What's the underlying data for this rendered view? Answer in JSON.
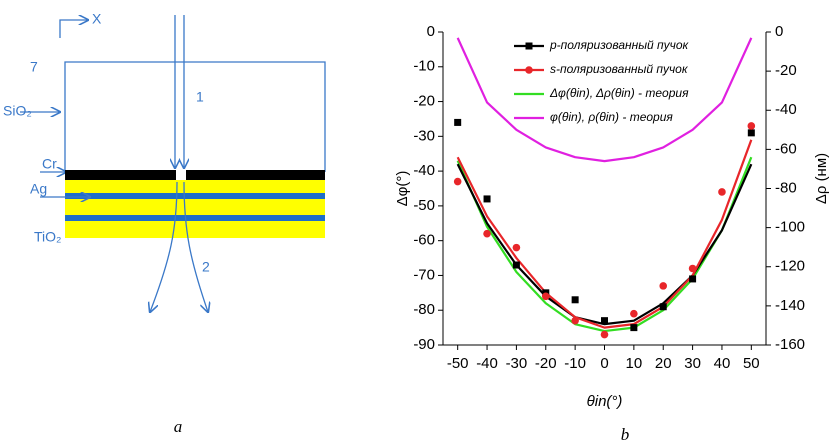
{
  "diagram": {
    "axes": [
      "X",
      "7"
    ],
    "layers": [
      "SiO₂",
      "Cr",
      "Ag",
      "TiO₂"
    ],
    "beams": [
      "1",
      "2"
    ]
  },
  "captions": [
    "a",
    "b"
  ],
  "chart_data": {
    "type": "line",
    "xlabel": "θin(°)",
    "ylabel": "Δφ(°)",
    "y2label": "Δρ (нм)",
    "xlim": [
      -55,
      55
    ],
    "xticks": [
      -50,
      -40,
      -30,
      -20,
      -10,
      0,
      10,
      20,
      30,
      40,
      50
    ],
    "ylim": [
      -90,
      0
    ],
    "yticks": [
      0,
      -10,
      -20,
      -30,
      -40,
      -50,
      -60,
      -70,
      -80,
      -90
    ],
    "y2lim": [
      -160,
      0
    ],
    "y2ticks": [
      0,
      -20,
      -40,
      -60,
      -80,
      -100,
      -120,
      -140,
      -160
    ],
    "series": [
      {
        "name": "p-поляризованный пучок",
        "color": "#000000",
        "marker": "square",
        "x": [
          -50,
          -40,
          -30,
          -20,
          -10,
          0,
          10,
          20,
          30,
          50
        ],
        "values": [
          -26,
          -48,
          -67,
          -75,
          -77,
          -83,
          -85,
          -79,
          -71,
          -29
        ]
      },
      {
        "name": "s-поляризованный пучок",
        "color": "#e8262a",
        "marker": "circle",
        "x": [
          -50,
          -40,
          -30,
          -20,
          -10,
          0,
          10,
          20,
          30,
          40,
          50
        ],
        "values": [
          -43,
          -58,
          -62,
          -76,
          -83,
          -87,
          -81,
          -73,
          -68,
          -46,
          -27
        ]
      },
      {
        "name": "Δφ(θin), Δρ(θin) - теория",
        "color": "#33dd22",
        "x": [
          -50,
          -40,
          -30,
          -20,
          -10,
          0,
          10,
          20,
          30,
          40,
          50
        ],
        "values": [
          -37,
          -56,
          -69,
          -78,
          -84,
          -86,
          -85,
          -80,
          -71,
          -57,
          -36
        ]
      },
      {
        "name": "φ(θin), ρ(θin) - теория",
        "color": "#e020e0",
        "axis": "y2",
        "x": [
          -50,
          -40,
          -30,
          -20,
          -10,
          0,
          10,
          20,
          30,
          40,
          50
        ],
        "values": [
          -3,
          -36,
          -50,
          -59,
          -64,
          -66,
          -64,
          -59,
          -50,
          -36,
          -3
        ]
      },
      {
        "color": "#000000",
        "x": [
          -50,
          -40,
          -30,
          -20,
          -10,
          0,
          10,
          20,
          30,
          40,
          50
        ],
        "values": [
          -38,
          -55,
          -67,
          -76,
          -82,
          -84,
          -83,
          -78,
          -70,
          -57,
          -38
        ]
      },
      {
        "color": "#e8262a",
        "x": [
          -50,
          -40,
          -30,
          -20,
          -10,
          0,
          10,
          20,
          30,
          40,
          50
        ],
        "values": [
          -36,
          -53,
          -65,
          -75,
          -82,
          -85,
          -84,
          -79,
          -70,
          -54,
          -31
        ]
      }
    ]
  }
}
